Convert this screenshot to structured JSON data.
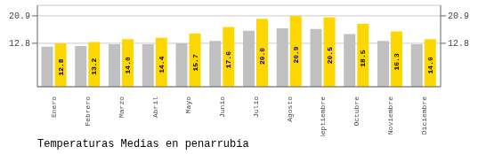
{
  "chart_data": {
    "type": "bar",
    "title": "Temperaturas Medias en penarrubia",
    "categories": [
      "Enero",
      "Febrero",
      "Marzo",
      "Abril",
      "Mayo",
      "Junio",
      "Julio",
      "Agosto",
      "Septiembre",
      "Octubre",
      "Noviembre",
      "Diciembre"
    ],
    "series": [
      {
        "color": "#C0C0C0",
        "values": [
          11.8,
          12.0,
          12.5,
          12.5,
          12.8,
          13.5,
          16.5,
          17.2,
          17.0,
          15.5,
          13.5,
          12.5
        ]
      },
      {
        "color": "#FFD700",
        "values": [
          12.8,
          13.2,
          14.0,
          14.4,
          15.7,
          17.6,
          20.0,
          20.9,
          20.5,
          18.5,
          16.3,
          14.0
        ],
        "value_labels": [
          "12.8",
          "13.2",
          "14.0",
          "14.4",
          "15.7",
          "17.6",
          "20.0",
          "20.9",
          "20.5",
          "18.5",
          "16.3",
          "14.0"
        ],
        "data_labels": true
      }
    ],
    "ylim": [
      0,
      24.0
    ],
    "yticks": [
      12.8,
      20.9
    ],
    "y2lim": [
      0,
      24.0
    ],
    "y2ticks": [
      12.8,
      20.9
    ],
    "grid": true
  }
}
